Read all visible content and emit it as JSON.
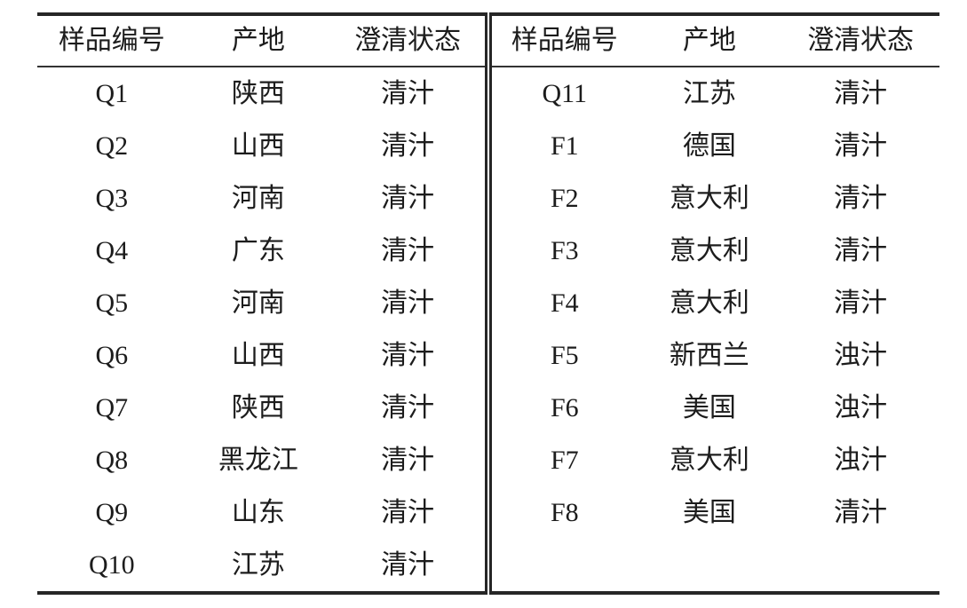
{
  "table": {
    "columns": {
      "sample_id": "样品编号",
      "origin": "产地",
      "clarity": "澄清状态"
    },
    "left_rows": [
      {
        "id": "Q1",
        "origin": "陕西",
        "state": "清汁"
      },
      {
        "id": "Q2",
        "origin": "山西",
        "state": "清汁"
      },
      {
        "id": "Q3",
        "origin": "河南",
        "state": "清汁"
      },
      {
        "id": "Q4",
        "origin": "广东",
        "state": "清汁"
      },
      {
        "id": "Q5",
        "origin": "河南",
        "state": "清汁"
      },
      {
        "id": "Q6",
        "origin": "山西",
        "state": "清汁"
      },
      {
        "id": "Q7",
        "origin": "陕西",
        "state": "清汁"
      },
      {
        "id": "Q8",
        "origin": "黑龙江",
        "state": "清汁"
      },
      {
        "id": "Q9",
        "origin": "山东",
        "state": "清汁"
      },
      {
        "id": "Q10",
        "origin": "江苏",
        "state": "清汁"
      }
    ],
    "right_rows": [
      {
        "id": "Q11",
        "origin": "江苏",
        "state": "清汁"
      },
      {
        "id": "F1",
        "origin": "德国",
        "state": "清汁"
      },
      {
        "id": "F2",
        "origin": "意大利",
        "state": "清汁"
      },
      {
        "id": "F3",
        "origin": "意大利",
        "state": "清汁"
      },
      {
        "id": "F4",
        "origin": "意大利",
        "state": "清汁"
      },
      {
        "id": "F5",
        "origin": "新西兰",
        "state": "浊汁"
      },
      {
        "id": "F6",
        "origin": "美国",
        "state": "浊汁"
      },
      {
        "id": "F7",
        "origin": "意大利",
        "state": "浊汁"
      },
      {
        "id": "F8",
        "origin": "美国",
        "state": "清汁"
      }
    ],
    "colors": {
      "text": "#1c1c1c",
      "rule": "#262626",
      "background": "#ffffff"
    }
  }
}
